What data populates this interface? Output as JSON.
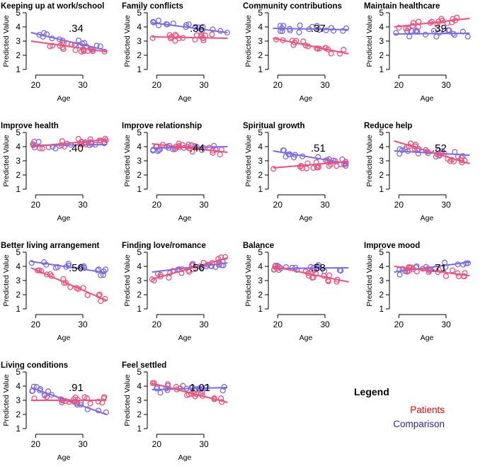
{
  "chart_data": {
    "type": "scatter",
    "shared_axes": {
      "xlabel": "Age",
      "ylabel": "Predicted Value",
      "xlim": [
        18,
        36
      ],
      "ylim": [
        1,
        5
      ],
      "xticks": [
        20,
        30
      ],
      "yticks": [
        1,
        2,
        3,
        4,
        5
      ]
    },
    "legend": {
      "title": "Legend",
      "items": [
        {
          "label": "Patients",
          "color": "#ff0000"
        },
        {
          "label": "Comparison",
          "color": "#2a2a9a"
        }
      ]
    },
    "series_colors": {
      "patients": "#f0507a",
      "comparison": "#7b6ae8"
    },
    "panels": [
      {
        "title": "Keeping up at work/school",
        "annotation": ".34",
        "patients_line": [
          [
            19,
            3.0
          ],
          [
            35,
            2.25
          ]
        ],
        "comparison_line": [
          [
            19,
            3.6
          ],
          [
            35,
            2.35
          ]
        ]
      },
      {
        "title": "Family conflicts",
        "annotation": ".36",
        "patients_line": [
          [
            19,
            3.3
          ],
          [
            35,
            3.2
          ]
        ],
        "comparison_line": [
          [
            19,
            4.3
          ],
          [
            35,
            3.6
          ]
        ]
      },
      {
        "title": "Community contributions",
        "annotation": ".37",
        "patients_line": [
          [
            19,
            3.2
          ],
          [
            35,
            2.1
          ]
        ],
        "comparison_line": [
          [
            19,
            3.9
          ],
          [
            35,
            3.8
          ]
        ]
      },
      {
        "title": "Maintain healthcare",
        "annotation": ".39",
        "patients_line": [
          [
            19,
            4.0
          ],
          [
            35,
            4.6
          ]
        ],
        "comparison_line": [
          [
            19,
            3.5
          ],
          [
            35,
            3.55
          ]
        ]
      },
      {
        "title": "Improve health",
        "annotation": ".40",
        "patients_line": [
          [
            19,
            4.0
          ],
          [
            35,
            4.5
          ]
        ],
        "comparison_line": [
          [
            19,
            4.1
          ],
          [
            35,
            4.15
          ]
        ]
      },
      {
        "title": "Improve relationship",
        "annotation": ".44",
        "patients_line": [
          [
            19,
            4.2
          ],
          [
            35,
            3.6
          ]
        ],
        "comparison_line": [
          [
            19,
            3.9
          ],
          [
            35,
            4.0
          ]
        ]
      },
      {
        "title": "Spiritual growth",
        "annotation": ".51",
        "patients_line": [
          [
            19,
            2.5
          ],
          [
            35,
            2.95
          ]
        ],
        "comparison_line": [
          [
            19,
            3.7
          ],
          [
            35,
            2.8
          ]
        ]
      },
      {
        "title": "Reduce help",
        "annotation": ".52",
        "patients_line": [
          [
            19,
            4.4
          ],
          [
            35,
            2.8
          ]
        ],
        "comparison_line": [
          [
            19,
            3.7
          ],
          [
            35,
            3.4
          ]
        ]
      },
      {
        "title": "Better living arrangement",
        "annotation": ".56",
        "patients_line": [
          [
            19,
            3.9
          ],
          [
            35,
            1.6
          ]
        ],
        "comparison_line": [
          [
            19,
            4.35
          ],
          [
            35,
            3.55
          ]
        ]
      },
      {
        "title": "Finding love/romance",
        "annotation": ".56",
        "patients_line": [
          [
            19,
            3.1
          ],
          [
            35,
            4.6
          ]
        ],
        "comparison_line": [
          [
            19,
            3.6
          ],
          [
            35,
            4.25
          ]
        ]
      },
      {
        "title": "Balance",
        "annotation": ".58",
        "patients_line": [
          [
            19,
            4.0
          ],
          [
            35,
            2.9
          ]
        ],
        "comparison_line": [
          [
            19,
            3.85
          ],
          [
            35,
            3.9
          ]
        ]
      },
      {
        "title": "Improve mood",
        "annotation": ".71",
        "patients_line": [
          [
            19,
            4.0
          ],
          [
            35,
            3.35
          ]
        ],
        "comparison_line": [
          [
            19,
            3.6
          ],
          [
            35,
            4.3
          ]
        ]
      },
      {
        "title": "Living conditions",
        "annotation": ".91",
        "patients_line": [
          [
            19,
            3.0
          ],
          [
            35,
            3.0
          ]
        ],
        "comparison_line": [
          [
            19,
            3.9
          ],
          [
            35,
            2.0
          ]
        ]
      },
      {
        "title": "Feel settled",
        "annotation": "1.01",
        "patients_line": [
          [
            19,
            4.2
          ],
          [
            35,
            2.85
          ]
        ],
        "comparison_line": [
          [
            19,
            3.75
          ],
          [
            35,
            3.9
          ]
        ]
      }
    ]
  }
}
